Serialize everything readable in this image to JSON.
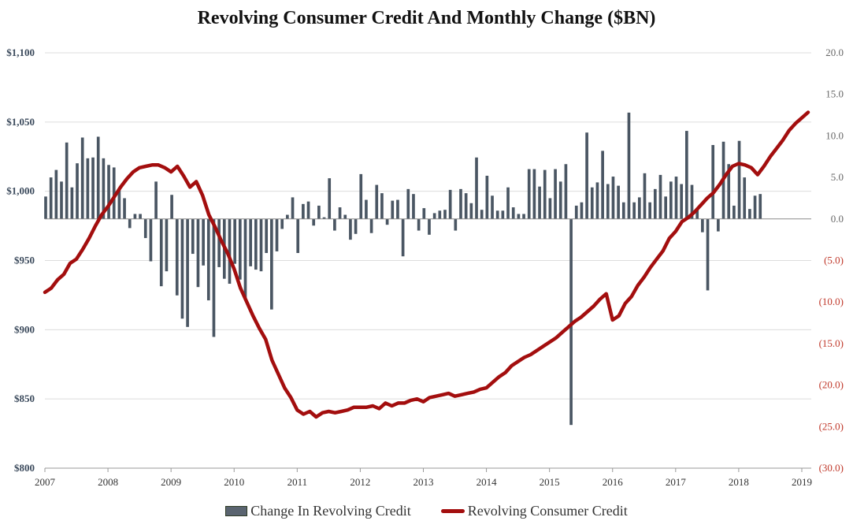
{
  "chart_data": {
    "type": "bar+line",
    "title": "Revolving Consumer Credit And Monthly Change ($BN)",
    "left_axis": {
      "min": 800,
      "max": 1100,
      "ticks": [
        1100,
        1050,
        1000,
        950,
        900,
        850,
        800
      ],
      "tick_labels": [
        "$1,100",
        "$1,050",
        "$1,000",
        "$950",
        "$900",
        "$850",
        "$800"
      ]
    },
    "right_axis": {
      "min": -30,
      "max": 20,
      "ticks": [
        20,
        15,
        10,
        5,
        0,
        -5,
        -10,
        -15,
        -20,
        -25,
        -30
      ],
      "tick_labels": [
        "20.0",
        "15.0",
        "10.0",
        "5.0",
        "0.0",
        "(5.0)",
        "(10.0)",
        "(15.0)",
        "(20.0)",
        "(25.0)",
        "(30.0)"
      ],
      "negative_color": "#c0392b",
      "positive_color": "#666666"
    },
    "x_axis": {
      "start": 2007.0,
      "end": 2019.15,
      "ticks": [
        2007,
        2008,
        2009,
        2010,
        2011,
        2012,
        2013,
        2014,
        2015,
        2016,
        2017,
        2018,
        2019
      ],
      "tick_labels": [
        "2007",
        "2008",
        "2009",
        "2010",
        "2011",
        "2012",
        "2013",
        "2014",
        "2015",
        "2016",
        "2017",
        "2018",
        "2019"
      ]
    },
    "grid": true,
    "legend_position": "bottom",
    "series": [
      {
        "name": "Change In Revolving Credit",
        "kind": "bar",
        "axis": "right",
        "color": "#4a5663",
        "x_start": 2007.0,
        "step": 0.0833,
        "values": [
          2.7,
          5.0,
          5.9,
          4.5,
          9.2,
          3.8,
          6.7,
          9.8,
          7.3,
          7.4,
          9.9,
          7.3,
          6.5,
          6.2,
          3.6,
          2.5,
          -1.1,
          0.6,
          0.6,
          -2.3,
          -5.1,
          4.5,
          -8.1,
          -6.3,
          2.9,
          -9.2,
          -12.0,
          -13.0,
          -4.2,
          -8.2,
          -5.6,
          -9.8,
          -14.2,
          -5.8,
          -7.2,
          -7.8,
          -5.4,
          -7.3,
          -9.7,
          -5.7,
          -6.1,
          -6.3,
          -4.1,
          -10.9,
          -3.9,
          -1.2,
          0.5,
          2.6,
          -4.1,
          1.8,
          2.1,
          -0.8,
          1.6,
          0.2,
          4.9,
          -1.4,
          1.4,
          0.5,
          -2.5,
          -1.8,
          5.4,
          2.3,
          -1.7,
          4.1,
          3.1,
          -0.7,
          2.2,
          2.3,
          -4.5,
          3.6,
          3.0,
          -1.4,
          1.3,
          -1.9,
          0.7,
          1.0,
          1.1,
          3.5,
          -1.4,
          3.6,
          3.1,
          1.9,
          7.4,
          1.1,
          5.2,
          2.8,
          1.0,
          1.0,
          3.8,
          1.4,
          0.6,
          0.6,
          6.0,
          6.0,
          3.9,
          5.9,
          2.5,
          6.0,
          4.5,
          6.6,
          -24.8,
          1.6,
          2.0,
          10.4,
          3.8,
          4.4,
          8.2,
          4.2,
          5.1,
          4.0,
          2.0,
          12.8,
          2.0,
          2.6,
          5.5,
          2.0,
          3.6,
          5.3,
          2.7,
          4.5,
          5.1,
          4.2,
          10.6,
          4.1,
          1.1,
          -1.6,
          -8.6,
          8.9,
          -1.5,
          9.3,
          6.6,
          1.6,
          9.4,
          5.0,
          1.2,
          2.8,
          3.0
        ]
      },
      {
        "name": "Revolving Consumer Credit",
        "kind": "line",
        "axis": "left",
        "color": "#a30e0e",
        "points": [
          [
            2007.0,
            927
          ],
          [
            2007.1,
            930
          ],
          [
            2007.2,
            936
          ],
          [
            2007.3,
            940
          ],
          [
            2007.4,
            948
          ],
          [
            2007.5,
            951
          ],
          [
            2007.6,
            958
          ],
          [
            2007.7,
            966
          ],
          [
            2007.8,
            975
          ],
          [
            2007.9,
            983
          ],
          [
            2008.0,
            989
          ],
          [
            2008.1,
            996
          ],
          [
            2008.2,
            1003
          ],
          [
            2008.3,
            1009
          ],
          [
            2008.4,
            1014
          ],
          [
            2008.5,
            1017
          ],
          [
            2008.6,
            1018
          ],
          [
            2008.7,
            1019
          ],
          [
            2008.8,
            1019
          ],
          [
            2008.9,
            1017
          ],
          [
            2009.0,
            1014
          ],
          [
            2009.1,
            1018
          ],
          [
            2009.2,
            1011
          ],
          [
            2009.3,
            1003
          ],
          [
            2009.4,
            1007
          ],
          [
            2009.5,
            997
          ],
          [
            2009.6,
            983
          ],
          [
            2009.7,
            974
          ],
          [
            2009.8,
            964
          ],
          [
            2009.9,
            955
          ],
          [
            2010.0,
            944
          ],
          [
            2010.1,
            930
          ],
          [
            2010.2,
            920
          ],
          [
            2010.3,
            910
          ],
          [
            2010.4,
            901
          ],
          [
            2010.5,
            893
          ],
          [
            2010.6,
            878
          ],
          [
            2010.7,
            868
          ],
          [
            2010.8,
            858
          ],
          [
            2010.9,
            851
          ],
          [
            2011.0,
            842
          ],
          [
            2011.1,
            839
          ],
          [
            2011.2,
            841
          ],
          [
            2011.3,
            837
          ],
          [
            2011.4,
            840
          ],
          [
            2011.5,
            841
          ],
          [
            2011.6,
            840
          ],
          [
            2011.7,
            841
          ],
          [
            2011.8,
            842
          ],
          [
            2011.9,
            844
          ],
          [
            2012.0,
            844
          ],
          [
            2012.1,
            844
          ],
          [
            2012.2,
            845
          ],
          [
            2012.3,
            843
          ],
          [
            2012.4,
            847
          ],
          [
            2012.5,
            845
          ],
          [
            2012.6,
            847
          ],
          [
            2012.7,
            847
          ],
          [
            2012.8,
            849
          ],
          [
            2012.9,
            850
          ],
          [
            2013.0,
            848
          ],
          [
            2013.1,
            851
          ],
          [
            2013.2,
            852
          ],
          [
            2013.3,
            853
          ],
          [
            2013.4,
            854
          ],
          [
            2013.5,
            852
          ],
          [
            2013.6,
            853
          ],
          [
            2013.7,
            854
          ],
          [
            2013.8,
            855
          ],
          [
            2013.9,
            857
          ],
          [
            2014.0,
            858
          ],
          [
            2014.1,
            862
          ],
          [
            2014.2,
            866
          ],
          [
            2014.3,
            869
          ],
          [
            2014.4,
            874
          ],
          [
            2014.5,
            877
          ],
          [
            2014.6,
            880
          ],
          [
            2014.7,
            882
          ],
          [
            2014.8,
            885
          ],
          [
            2014.9,
            888
          ],
          [
            2015.0,
            891
          ],
          [
            2015.1,
            894
          ],
          [
            2015.2,
            898
          ],
          [
            2015.3,
            902
          ],
          [
            2015.4,
            906
          ],
          [
            2015.5,
            909
          ],
          [
            2015.6,
            913
          ],
          [
            2015.7,
            917
          ],
          [
            2015.8,
            922
          ],
          [
            2015.9,
            926
          ],
          [
            2016.0,
            907
          ],
          [
            2016.1,
            910
          ],
          [
            2016.2,
            919
          ],
          [
            2016.3,
            924
          ],
          [
            2016.4,
            932
          ],
          [
            2016.5,
            938
          ],
          [
            2016.6,
            945
          ],
          [
            2016.7,
            951
          ],
          [
            2016.8,
            957
          ],
          [
            2016.9,
            966
          ],
          [
            2017.0,
            971
          ],
          [
            2017.1,
            978
          ],
          [
            2017.2,
            981
          ],
          [
            2017.3,
            985
          ],
          [
            2017.4,
            990
          ],
          [
            2017.5,
            995
          ],
          [
            2017.6,
            999
          ],
          [
            2017.7,
            1005
          ],
          [
            2017.8,
            1012
          ],
          [
            2017.9,
            1018
          ],
          [
            2018.0,
            1020
          ],
          [
            2018.1,
            1019
          ],
          [
            2018.2,
            1017
          ],
          [
            2018.3,
            1012
          ],
          [
            2018.4,
            1018
          ],
          [
            2018.5,
            1025
          ],
          [
            2018.6,
            1031
          ],
          [
            2018.7,
            1037
          ],
          [
            2018.8,
            1044
          ],
          [
            2018.9,
            1049
          ],
          [
            2019.0,
            1053
          ],
          [
            2019.1,
            1057
          ]
        ]
      }
    ]
  }
}
